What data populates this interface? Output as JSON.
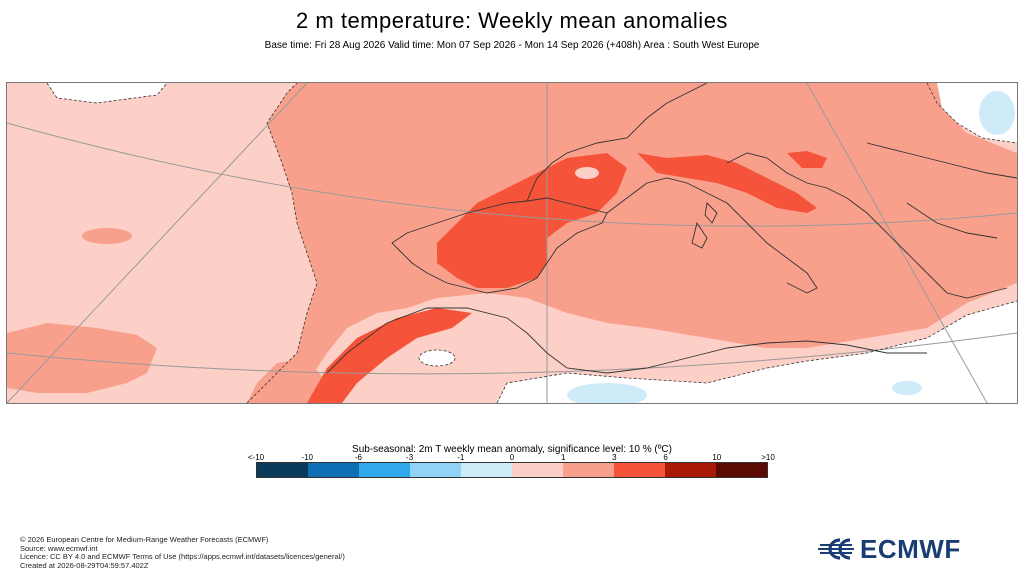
{
  "header": {
    "title": "2 m temperature: Weekly mean anomalies",
    "subtitle": "Base time: Fri 28 Aug 2026 Valid time: Mon 07 Sep 2026 - Mon 14 Sep 2026 (+408h) Area : South West Europe"
  },
  "legend": {
    "title": "Sub-seasonal: 2m T weekly mean anomaly, significance level: 10 % (ºC)",
    "ticks": [
      "<-10",
      "-10",
      "-6",
      "-3",
      "-1",
      "0",
      "1",
      "3",
      "6",
      "10",
      ">10"
    ],
    "colors": [
      "#0b3a5a",
      "#0e6fb5",
      "#2fa8ec",
      "#92d2f6",
      "#cfeaf9",
      "#fdd0c7",
      "#f9a08d",
      "#f5543a",
      "#a81906",
      "#5c0a04"
    ]
  },
  "map": {
    "colors": {
      "warm_light": "#fdd0c7",
      "warm_medium": "#f9a08d",
      "warm_strong": "#f5543a",
      "cool_light": "#cfeaf9",
      "neutral": "#ffffff",
      "border": "#333333",
      "graticule": "#999999"
    }
  },
  "footer": {
    "lines": [
      "© 2026 European Centre for Medium-Range Weather Forecasts (ECMWF)",
      "Source: www.ecmwf.int",
      "Licence: CC BY 4.0 and ECMWF Terms of Use (https://apps.ecmwf.int/datasets/licences/general/)",
      "Created at 2026-08-29T04:59:57.402Z"
    ]
  },
  "logo": {
    "text": "ECMWF",
    "icon": "ecmwf-logo-icon",
    "color": "#1a3d73"
  }
}
